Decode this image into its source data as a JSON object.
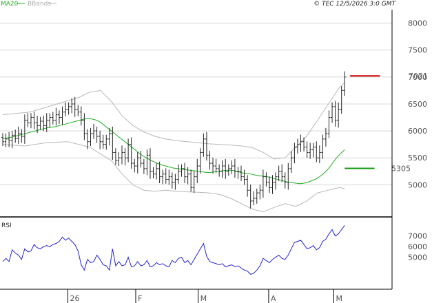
{
  "header": {
    "legend_ma": "MA20",
    "legend_bb": "BBands",
    "copyright": "© TEC 12/5/2026 3:0 GMT"
  },
  "colors": {
    "ma": "#1fae1f",
    "bb": "#b8b8b8",
    "price": "#222222",
    "rsi": "#2323d8",
    "resistance": "#cc0000",
    "support": "#119911",
    "grid": "#d8d8d8",
    "frame": "#000000"
  },
  "chart_data": [
    {
      "type": "ohlc",
      "y_ticks": [
        8000,
        7500,
        7000,
        6500,
        6000,
        5500,
        5000
      ],
      "ylim": [
        4430,
        8250
      ],
      "x_range": [
        0,
        130
      ],
      "month_labels": [
        {
          "label": "26",
          "x": 24
        },
        {
          "label": "F",
          "x": 49
        },
        {
          "label": "M",
          "x": 72
        },
        {
          "label": "A",
          "x": 98
        },
        {
          "label": "M",
          "x": 122
        }
      ],
      "resistance": {
        "value": 7021,
        "label": "7021",
        "x_from": 128,
        "x_to": 139
      },
      "support": {
        "value": 5305,
        "label": "5305",
        "x_from": 126,
        "x_to": 137
      },
      "price_start": 5880,
      "price_closes": [
        5800,
        5850,
        5820,
        5920,
        5860,
        5950,
        5900,
        6200,
        6150,
        6250,
        6150,
        6100,
        6180,
        6100,
        6200,
        6250,
        6200,
        6300,
        6250,
        6350,
        6400,
        6450,
        6500,
        6400,
        6350,
        6200,
        5950,
        5800,
        5950,
        6000,
        5900,
        5800,
        5750,
        5850,
        5950,
        5600,
        5450,
        5500,
        5600,
        5500,
        5750,
        5400,
        5350,
        5500,
        5400,
        5300,
        5550,
        5250,
        5200,
        5300,
        5150,
        5200,
        5100,
        5150,
        5050,
        5100,
        5250,
        5300,
        5150,
        5200,
        4950,
        5150,
        5350,
        5600,
        5850,
        5550,
        5400,
        5350,
        5300,
        5250,
        5350,
        5250,
        5300,
        5350,
        5250,
        5250,
        5150,
        5100,
        4900,
        4700,
        4750,
        4850,
        4900,
        5150,
        5050,
        4950,
        5050,
        5150,
        5250,
        5150,
        5050,
        5300,
        5500,
        5700,
        5750,
        5800,
        5700,
        5600,
        5650,
        5700,
        5500,
        5600,
        5850,
        5950,
        6250,
        6450,
        6200,
        6400,
        6750,
        7000
      ],
      "ma20": [
        5850,
        5870,
        5880,
        5900,
        5920,
        5940,
        5960,
        5980,
        6000,
        6020,
        6040,
        6060,
        6070,
        6080,
        6100,
        6120,
        6140,
        6160,
        6180,
        6200,
        6220,
        6230,
        6220,
        6200,
        6160,
        6100,
        6040,
        5980,
        5920,
        5860,
        5800,
        5740,
        5680,
        5620,
        5560,
        5510,
        5470,
        5430,
        5400,
        5370,
        5350,
        5330,
        5310,
        5300,
        5290,
        5280,
        5270,
        5260,
        5250,
        5240,
        5230,
        5230,
        5240,
        5250,
        5260,
        5270,
        5270,
        5260,
        5240,
        5220,
        5210,
        5200,
        5180,
        5170,
        5160,
        5150,
        5130,
        5110,
        5090,
        5070,
        5050,
        5040,
        5030,
        5020,
        5030,
        5050,
        5080,
        5110,
        5160,
        5220,
        5300,
        5400,
        5500,
        5580,
        5650
      ],
      "ma20_start_x": 0,
      "bb_upper_x": [
        0,
        10,
        20,
        28,
        32,
        36,
        40,
        44,
        48,
        52,
        56,
        60,
        64,
        68,
        72,
        76,
        80,
        84,
        88,
        92,
        96,
        100,
        104,
        108,
        112,
        116,
        120,
        124,
        126
      ],
      "bb_upper": [
        6300,
        6350,
        6500,
        6620,
        6720,
        6750,
        6550,
        6280,
        6100,
        5980,
        5900,
        5850,
        5820,
        5800,
        5780,
        5760,
        5750,
        5740,
        5720,
        5690,
        5600,
        5480,
        5500,
        5700,
        5900,
        6200,
        6500,
        6800,
        6900
      ],
      "bb_lower_x": [
        0,
        8,
        16,
        24,
        32,
        40,
        44,
        48,
        52,
        56,
        60,
        64,
        68,
        72,
        76,
        80,
        84,
        88,
        92,
        96,
        100,
        104,
        108,
        112,
        116,
        120,
        124,
        126
      ],
      "bb_lower": [
        5750,
        5720,
        5780,
        5800,
        5700,
        5450,
        5200,
        5000,
        4900,
        4880,
        4900,
        4880,
        4870,
        4860,
        4850,
        4820,
        4750,
        4650,
        4550,
        4500,
        4580,
        4650,
        4600,
        4700,
        4850,
        4900,
        4950,
        4930
      ]
    },
    {
      "type": "line",
      "title": "RSI",
      "y_ticks": [
        7000,
        6000,
        5000
      ],
      "ylim": [
        2000,
        8600
      ],
      "rsi": [
        4600,
        4900,
        4600,
        5700,
        5400,
        5200,
        4800,
        5800,
        5500,
        5600,
        6200,
        5900,
        5800,
        6000,
        6100,
        6000,
        6200,
        6300,
        6500,
        6900,
        6600,
        6800,
        6500,
        6200,
        5600,
        4300,
        3800,
        4800,
        4500,
        4600,
        5200,
        4800,
        4300,
        4200,
        3800,
        5800,
        4200,
        4600,
        4200,
        4300,
        5000,
        4100,
        4200,
        4600,
        4200,
        4300,
        4700,
        4100,
        4200,
        4500,
        4300,
        4400,
        4200,
        4100,
        4700,
        4500,
        4900,
        5000,
        4500,
        4700,
        4300,
        4800,
        5300,
        5800,
        6300,
        5100,
        4600,
        4500,
        4400,
        4300,
        4400,
        4100,
        4200,
        4300,
        4100,
        4200,
        4000,
        3800,
        3700,
        3400,
        3500,
        3800,
        4200,
        4900,
        4700,
        4500,
        4800,
        5000,
        5200,
        4900,
        4800,
        5200,
        5800,
        6400,
        6500,
        6600,
        6200,
        5800,
        5900,
        6100,
        5700,
        5900,
        6500,
        6700,
        7200,
        7600,
        7000,
        7200,
        7600,
        8000
      ]
    }
  ]
}
